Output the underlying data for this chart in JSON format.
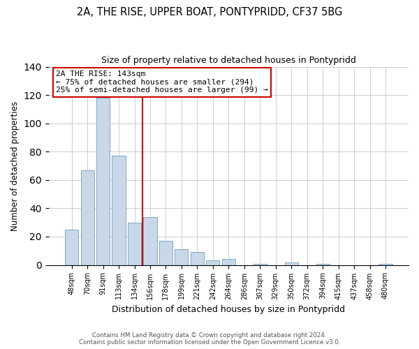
{
  "title": "2A, THE RISE, UPPER BOAT, PONTYPRIDD, CF37 5BG",
  "subtitle": "Size of property relative to detached houses in Pontypridd",
  "xlabel": "Distribution of detached houses by size in Pontypridd",
  "ylabel": "Number of detached properties",
  "bar_labels": [
    "48sqm",
    "70sqm",
    "91sqm",
    "113sqm",
    "134sqm",
    "156sqm",
    "178sqm",
    "199sqm",
    "221sqm",
    "242sqm",
    "264sqm",
    "286sqm",
    "307sqm",
    "329sqm",
    "350sqm",
    "372sqm",
    "394sqm",
    "415sqm",
    "437sqm",
    "458sqm",
    "480sqm"
  ],
  "bar_values": [
    25,
    67,
    118,
    77,
    30,
    34,
    17,
    11,
    9,
    3,
    4,
    0,
    1,
    0,
    2,
    0,
    1,
    0,
    0,
    0,
    1
  ],
  "bar_color": "#c8d8e8",
  "bar_edge_color": "#7fa8c0",
  "vline_x": 4.5,
  "vline_color": "#cc0000",
  "annotation_line1": "2A THE RISE: 143sqm",
  "annotation_line2": "← 75% of detached houses are smaller (294)",
  "annotation_line3": "25% of semi-detached houses are larger (99) →",
  "annotation_box_color": "white",
  "annotation_box_edge": "#cc0000",
  "ylim": [
    0,
    140
  ],
  "yticks": [
    0,
    20,
    40,
    60,
    80,
    100,
    120,
    140
  ],
  "footer": "Contains HM Land Registry data © Crown copyright and database right 2024.\nContains public sector information licensed under the Open Government Licence v3.0.",
  "fig_width": 6.0,
  "fig_height": 5.0,
  "dpi": 100
}
